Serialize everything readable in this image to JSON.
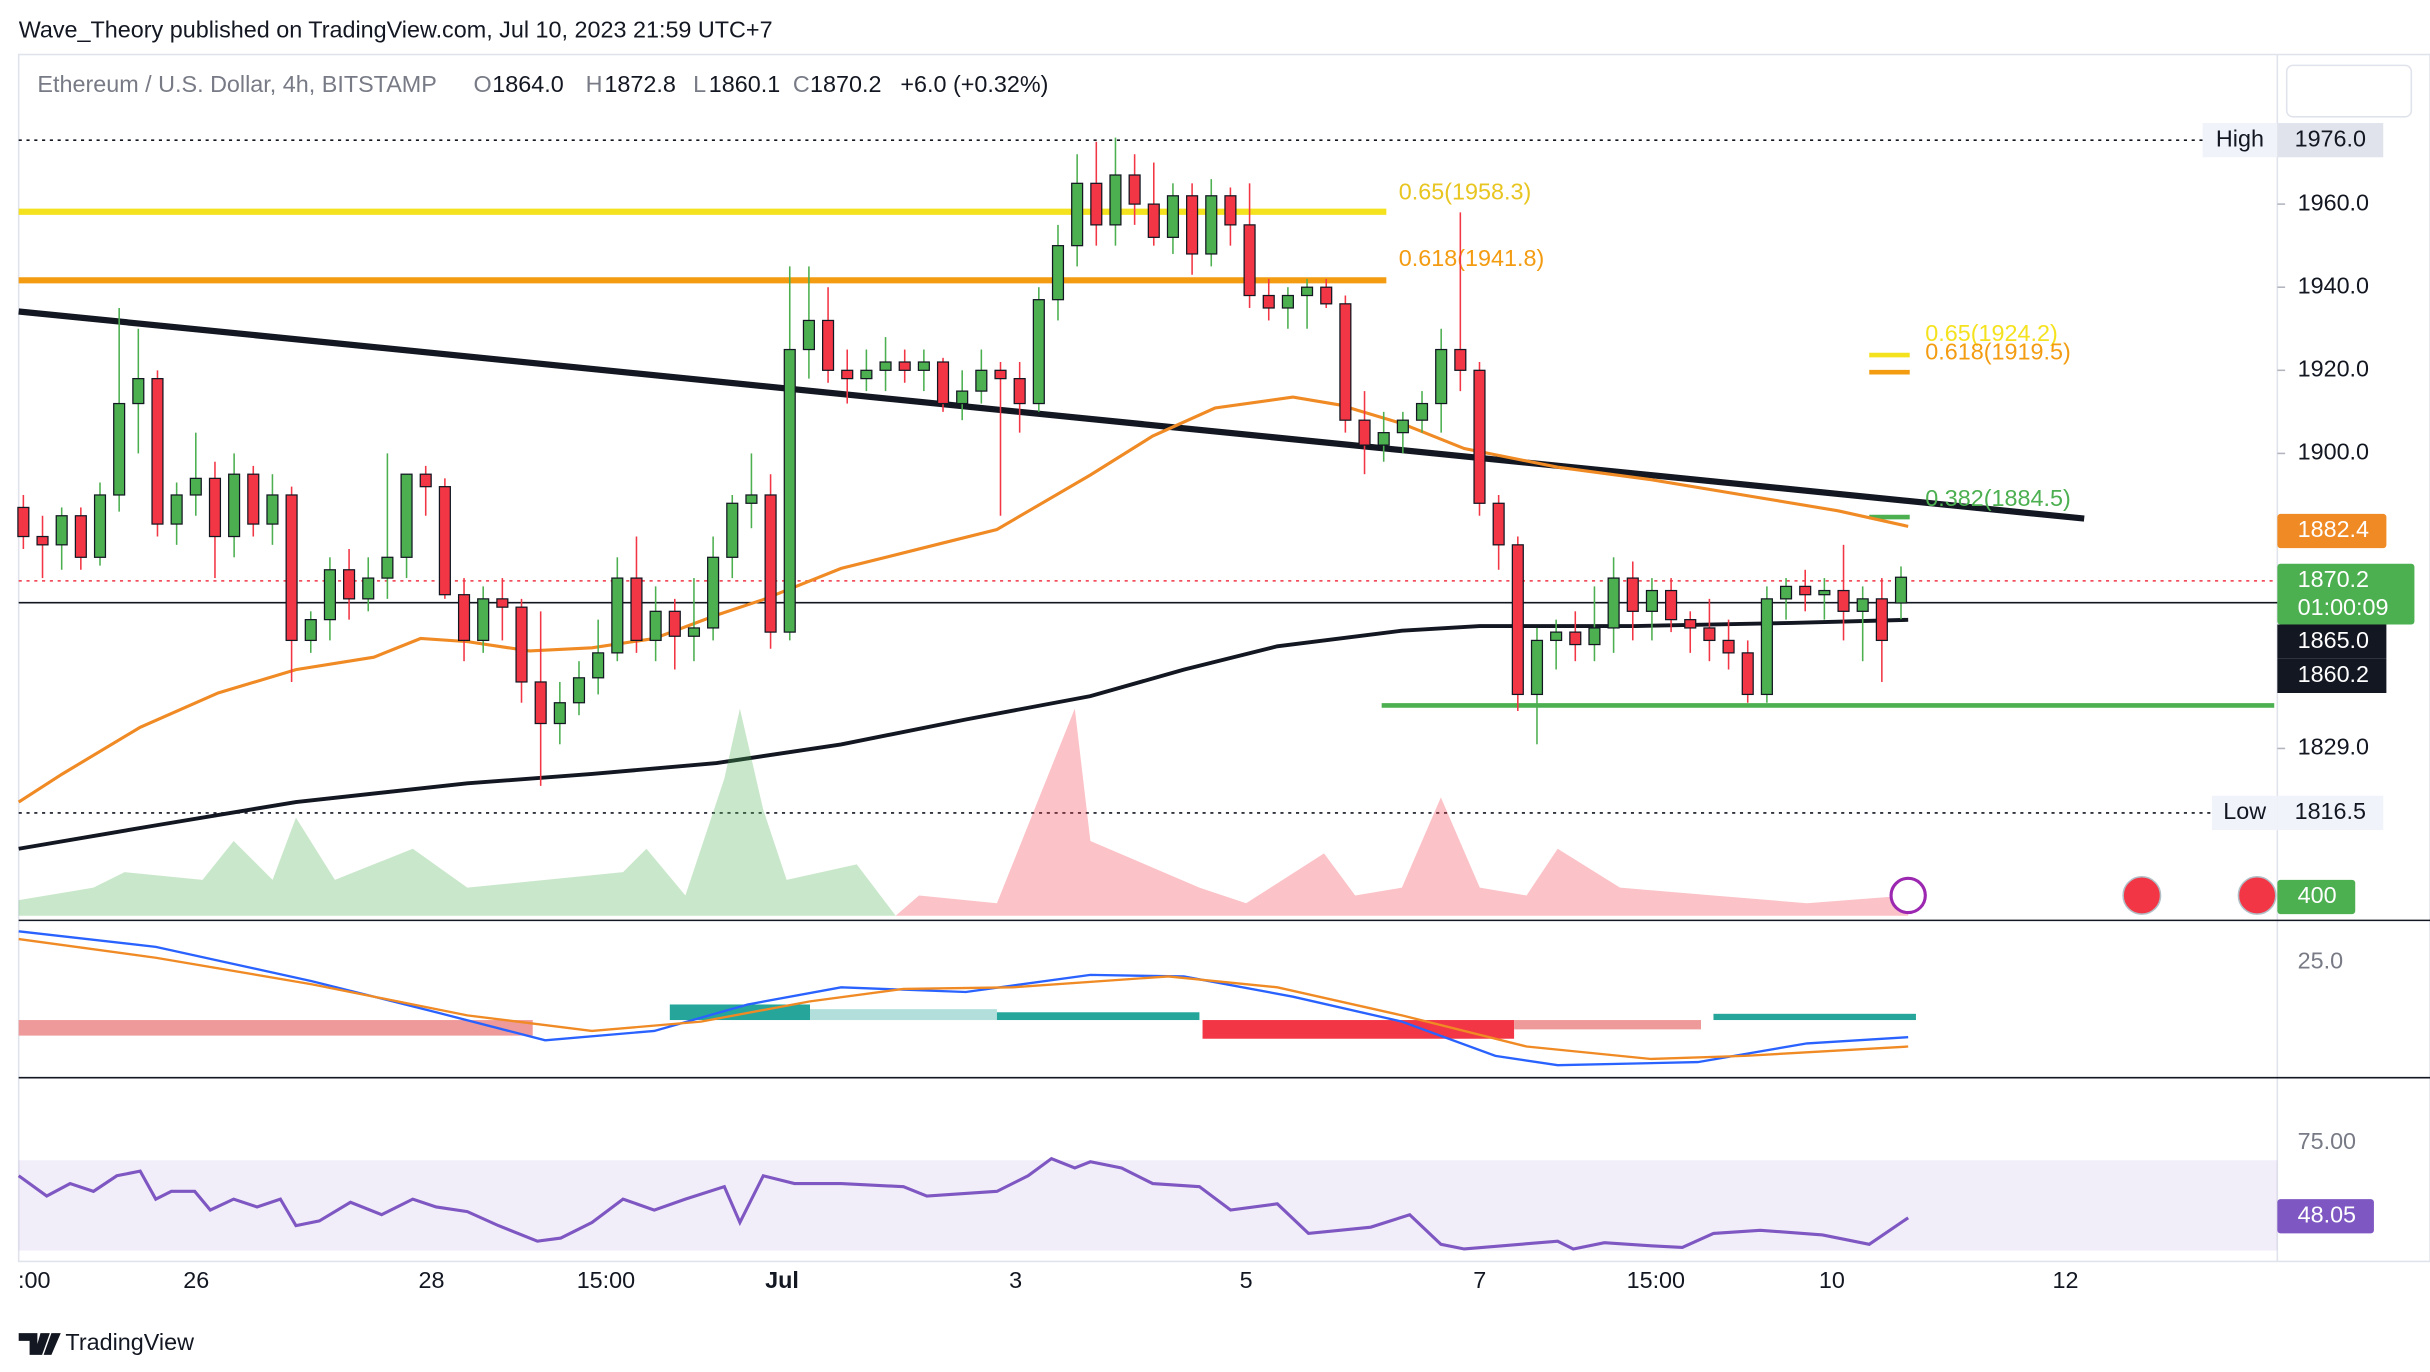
{
  "header": {
    "publisher": "Wave_Theory published on TradingView.com, Jul 10, 2023 21:59 UTC+7"
  },
  "symbol": {
    "name": "Ethereum / U.S. Dollar, 4h, BITSTAMP",
    "o_label": "O",
    "o": "1864.0",
    "h_label": "H",
    "h": "1872.8",
    "l_label": "L",
    "l": "1860.1",
    "c_label": "C",
    "c": "1870.2",
    "change": "+6.0 (+0.32%)"
  },
  "chart_data": {
    "type": "candlestick",
    "ylim": [
      1788,
      1996
    ],
    "yticks": [
      {
        "value": 1960,
        "label": "1960.0"
      },
      {
        "value": 1940,
        "label": "1940.0"
      },
      {
        "value": 1920,
        "label": "1920.0"
      },
      {
        "value": 1900,
        "label": "1900.0"
      },
      {
        "value": 1829,
        "label": "1829.0"
      }
    ],
    "up_color": "#4caf50",
    "down_color": "#f23645",
    "x_labels": [
      ":00",
      "26",
      "28",
      "15:00",
      "Jul",
      "3",
      "5",
      "7",
      "15:00",
      "10",
      "12"
    ],
    "open": [
      1887,
      1880,
      1878,
      1885,
      1875,
      1890,
      1912,
      1918,
      1883,
      1890,
      1894,
      1880,
      1895,
      1883,
      1890,
      1855,
      1860,
      1872,
      1865,
      1870,
      1875,
      1895,
      1892,
      1866,
      1855,
      1865,
      1863,
      1845,
      1835,
      1840,
      1846,
      1852,
      1870,
      1855,
      1862,
      1856,
      1858,
      1875,
      1888,
      1890,
      1857,
      1925,
      1932,
      1920,
      1918,
      1920,
      1922,
      1920,
      1922,
      1912,
      1915,
      1920,
      1918,
      1912,
      1937,
      1950,
      1965,
      1955,
      1967,
      1960,
      1952,
      1962,
      1948,
      1962,
      1955,
      1938,
      1935,
      1938,
      1940,
      1936,
      1908,
      1902,
      1905,
      1908,
      1912,
      1925,
      1920,
      1888,
      1878,
      1842,
      1855,
      1857,
      1854,
      1858,
      1870,
      1862,
      1867,
      1860,
      1858,
      1855,
      1852,
      1842,
      1865,
      1868,
      1866,
      1867,
      1862,
      1865,
      1864
    ],
    "high": [
      1890,
      1885,
      1887,
      1887,
      1893,
      1935,
      1930,
      1920,
      1893,
      1905,
      1898,
      1900,
      1897,
      1895,
      1892,
      1862,
      1875,
      1877,
      1875,
      1900,
      1895,
      1897,
      1894,
      1870,
      1868,
      1870,
      1865,
      1862,
      1845,
      1850,
      1860,
      1875,
      1880,
      1868,
      1865,
      1870,
      1880,
      1890,
      1900,
      1895,
      1945,
      1945,
      1940,
      1925,
      1925,
      1928,
      1925,
      1925,
      1923,
      1920,
      1925,
      1922,
      1922,
      1940,
      1955,
      1972,
      1975,
      1976,
      1972,
      1970,
      1965,
      1965,
      1966,
      1964,
      1965,
      1942,
      1940,
      1942,
      1942,
      1938,
      1915,
      1910,
      1910,
      1915,
      1930,
      1958,
      1922,
      1890,
      1880,
      1858,
      1860,
      1862,
      1868,
      1875,
      1874,
      1870,
      1870,
      1862,
      1865,
      1860,
      1855,
      1868,
      1870,
      1872,
      1870,
      1878,
      1868,
      1870,
      1872.8
    ],
    "low": [
      1877,
      1870,
      1872,
      1872,
      1873,
      1886,
      1900,
      1880,
      1878,
      1885,
      1870,
      1875,
      1880,
      1878,
      1845,
      1852,
      1855,
      1860,
      1862,
      1865,
      1870,
      1885,
      1865,
      1850,
      1852,
      1855,
      1840,
      1820,
      1830,
      1837,
      1842,
      1850,
      1852,
      1850,
      1848,
      1850,
      1855,
      1870,
      1882,
      1853,
      1855,
      1918,
      1917,
      1912,
      1915,
      1915,
      1917,
      1915,
      1910,
      1908,
      1912,
      1885,
      1905,
      1910,
      1932,
      1945,
      1950,
      1950,
      1955,
      1950,
      1948,
      1943,
      1945,
      1950,
      1935,
      1932,
      1930,
      1930,
      1935,
      1905,
      1895,
      1898,
      1900,
      1905,
      1905,
      1915,
      1885,
      1872,
      1838,
      1830,
      1848,
      1850,
      1850,
      1852,
      1855,
      1855,
      1857,
      1852,
      1850,
      1848,
      1840,
      1840,
      1860,
      1862,
      1860,
      1855,
      1850,
      1845,
      1860.1
    ],
    "close": [
      1880,
      1878,
      1885,
      1875,
      1890,
      1912,
      1918,
      1883,
      1890,
      1894,
      1880,
      1895,
      1883,
      1890,
      1855,
      1860,
      1872,
      1865,
      1870,
      1875,
      1895,
      1892,
      1866,
      1855,
      1865,
      1863,
      1845,
      1835,
      1840,
      1846,
      1852,
      1870,
      1855,
      1862,
      1856,
      1858,
      1875,
      1888,
      1890,
      1857,
      1925,
      1932,
      1920,
      1918,
      1920,
      1922,
      1920,
      1922,
      1912,
      1915,
      1920,
      1918,
      1912,
      1937,
      1950,
      1965,
      1955,
      1967,
      1960,
      1952,
      1962,
      1948,
      1962,
      1955,
      1938,
      1935,
      1938,
      1940,
      1936,
      1908,
      1902,
      1905,
      1908,
      1912,
      1925,
      1920,
      1888,
      1878,
      1842,
      1855,
      1857,
      1854,
      1858,
      1870,
      1862,
      1867,
      1860,
      1858,
      1855,
      1852,
      1842,
      1865,
      1868,
      1866,
      1867,
      1862,
      1865,
      1855,
      1870.2
    ]
  },
  "fib_labels": [
    "0.65(1958.3)",
    "0.618(1941.8)",
    "0.65(1924.2)",
    "0.618(1919.5)",
    "0.382(1884.5)"
  ],
  "price_badges": {
    "high_label": "High",
    "high": "1976.0",
    "low_label": "Low",
    "low": "1816.5",
    "ema": "1882.4",
    "last": "1870.2",
    "countdown": "01:00:09",
    "line1": "1865.0",
    "line2": "1860.2",
    "volume": "400",
    "macd_tick": "25.0",
    "rsi_tick": "75.00",
    "rsi": "48.05"
  },
  "footer": {
    "brand": "TradingView"
  }
}
